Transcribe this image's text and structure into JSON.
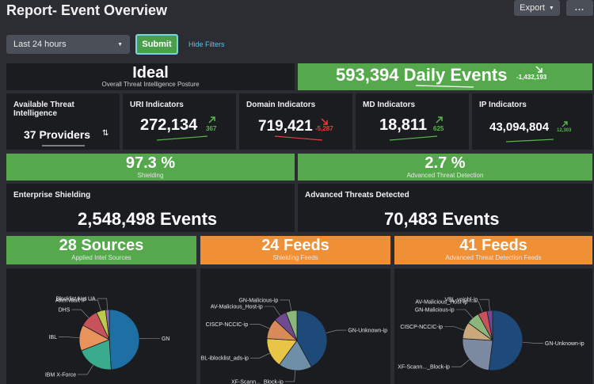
{
  "header": {
    "title": "Report- Event Overview",
    "export_label": "Export",
    "more_label": "..."
  },
  "filters": {
    "time_range": "Last 24 hours",
    "submit_label": "Submit",
    "hide_filters_label": "Hide Filters"
  },
  "posture": {
    "value": "Ideal",
    "label": "Overall Threat Intelligence Posture"
  },
  "daily_events": {
    "value": "593,394 Daily Events",
    "delta": "-1,432,193"
  },
  "providers": {
    "title": "Available Threat Intelligence",
    "value": "37 Providers"
  },
  "uri": {
    "title": "URI Indicators",
    "value": "272,134",
    "delta": "367"
  },
  "domain": {
    "title": "Domain Indicators",
    "value": "719,421",
    "delta": "-5,287"
  },
  "md": {
    "title": "MD Indicators",
    "value": "18,811",
    "delta": "625"
  },
  "ip": {
    "title": "IP Indicators",
    "value": "43,094,804",
    "delta": "12,303"
  },
  "shielding_pct": {
    "value": "97.3 %",
    "label": "Shielding"
  },
  "advanced_pct": {
    "value": "2.7 %",
    "label": "Advanced Threat Detection"
  },
  "enterprise": {
    "title": "Enterprise Shielding",
    "value": "2,548,498 Events"
  },
  "advanced_detected": {
    "title": "Advanced Threats Detected",
    "value": "70,483 Events"
  },
  "sources": {
    "value": "28 Sources",
    "label": "Applied Intel Sources"
  },
  "shield_feeds": {
    "value": "24 Feeds",
    "label": "Shielding Feeds"
  },
  "adv_feeds": {
    "value": "41 Feeds",
    "label": "Advanced Threat Detection Feeds"
  },
  "colors": {
    "green": "#55a94c",
    "orange": "#ef8f36",
    "panel": "#1a1c20",
    "bg": "#2b2d33",
    "up": "#58b74c",
    "down": "#e0443b"
  },
  "chart_data": [
    {
      "type": "pie",
      "title": "Applied Intel Sources",
      "categories": [
        "GN",
        "IBM X-Force",
        "IBL",
        "DHS",
        "AlienVault IP",
        "Blocklist Net UA"
      ],
      "values": [
        49,
        20,
        14,
        10,
        5,
        2
      ],
      "colors": [
        "#1e6fa3",
        "#3aab8c",
        "#e8925c",
        "#c8525c",
        "#bcc94a",
        "#8a6bb0"
      ]
    },
    {
      "type": "pie",
      "title": "Shielding Feeds",
      "categories": [
        "GN-Unknown-ip",
        "XF-Scann..._Block-ip",
        "IBL-iblocklist_ads-ip",
        "CISCP-NCCIC-ip",
        "AV-Malicious_Host-ip",
        "GN-Malicious-ip"
      ],
      "values": [
        42,
        18,
        16,
        11,
        7,
        6
      ],
      "colors": [
        "#1e4a7a",
        "#6f8fa8",
        "#e8c547",
        "#d88a58",
        "#6f4a8e",
        "#8ab87a"
      ]
    },
    {
      "type": "pie",
      "title": "Advanced Threat Detection Feeds",
      "categories": [
        "GN-Unknown-ip",
        "XF-Scann..._Block-ip",
        "CISCP-NCCIC-ip",
        "GN-Malicious-ip",
        "AV-Malicious_Host-ip",
        "VBL-voipbl-ip"
      ],
      "values": [
        52,
        24,
        9,
        7,
        5,
        3
      ],
      "colors": [
        "#1e4a7a",
        "#7b8aa0",
        "#c9a87c",
        "#8ab87a",
        "#c8525c",
        "#6f4a8e"
      ]
    }
  ]
}
